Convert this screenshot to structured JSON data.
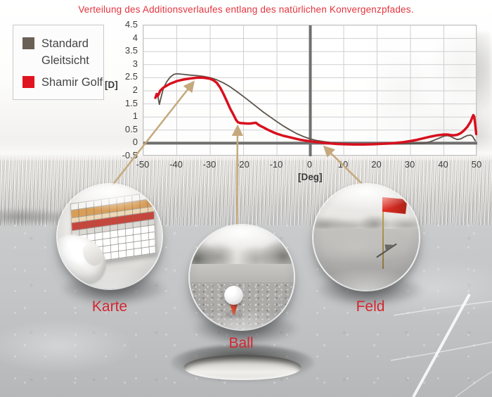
{
  "title": {
    "text": "Verteilung des Additionsverlaufes entlang des natürlichen Konvergenzpfades."
  },
  "legend": {
    "items": [
      {
        "label": "Standard Gleitsicht",
        "color": "#6b6055"
      },
      {
        "label": "Shamir Golf",
        "color": "#e0141f"
      }
    ]
  },
  "colors": {
    "accent_red": "#d22730",
    "title_red": "#e5333d",
    "arrow_tan": "#c5a97c",
    "axis_dark": "#6f6f6f",
    "grid": "#cfcfcf"
  },
  "chart_data": {
    "type": "line",
    "title": "",
    "xlabel": "[Deg]",
    "ylabel": "[D]",
    "xlim": [
      -50,
      50
    ],
    "ylim": [
      -0.5,
      4.5
    ],
    "x_ticks": [
      -50,
      -40,
      -30,
      -20,
      -10,
      0,
      10,
      20,
      30,
      40,
      50
    ],
    "y_ticks": [
      -0.5,
      0,
      0.5,
      1,
      1.5,
      2,
      2.5,
      3,
      3.5,
      4,
      4.5
    ],
    "grid": true,
    "legend_position": "outside-left",
    "series": [
      {
        "name": "Standard Gleitsicht",
        "color": "#5c544b",
        "width": 1.8,
        "points": [
          [
            -45.6,
            1.75
          ],
          [
            -45.2,
            1.48
          ],
          [
            -45,
            1.6
          ],
          [
            -44.5,
            1.85
          ],
          [
            -44,
            2.1
          ],
          [
            -43,
            2.35
          ],
          [
            -42,
            2.52
          ],
          [
            -41,
            2.62
          ],
          [
            -40,
            2.65
          ],
          [
            -38,
            2.63
          ],
          [
            -36,
            2.6
          ],
          [
            -34,
            2.58
          ],
          [
            -32,
            2.55
          ],
          [
            -30,
            2.5
          ],
          [
            -28,
            2.42
          ],
          [
            -26,
            2.3
          ],
          [
            -24,
            2.15
          ],
          [
            -22,
            1.97
          ],
          [
            -20,
            1.78
          ],
          [
            -18,
            1.58
          ],
          [
            -16,
            1.38
          ],
          [
            -14,
            1.18
          ],
          [
            -12,
            1.0
          ],
          [
            -10,
            0.82
          ],
          [
            -8,
            0.65
          ],
          [
            -6,
            0.5
          ],
          [
            -4,
            0.36
          ],
          [
            -2,
            0.25
          ],
          [
            0,
            0.16
          ],
          [
            2,
            0.1
          ],
          [
            4,
            0.06
          ],
          [
            6,
            0.03
          ],
          [
            8,
            0.01
          ],
          [
            10,
            -0.01
          ],
          [
            14,
            -0.03
          ],
          [
            18,
            -0.04
          ],
          [
            22,
            -0.04
          ],
          [
            26,
            -0.03
          ],
          [
            30,
            -0.02
          ],
          [
            34,
            0.0
          ],
          [
            36,
            0.06
          ],
          [
            38,
            0.16
          ],
          [
            40,
            0.27
          ],
          [
            41,
            0.29
          ],
          [
            42,
            0.26
          ],
          [
            43,
            0.19
          ],
          [
            44,
            0.14
          ],
          [
            45,
            0.16
          ],
          [
            46,
            0.23
          ],
          [
            47,
            0.29
          ],
          [
            48,
            0.31
          ],
          [
            48.6,
            0.27
          ],
          [
            49,
            0.17
          ],
          [
            49.4,
            0.09
          ]
        ]
      },
      {
        "name": "Shamir Golf",
        "color": "#d8101e",
        "width": 3.5,
        "points": [
          [
            -46.4,
            1.73
          ],
          [
            -46,
            1.88
          ],
          [
            -45.7,
            1.8
          ],
          [
            -45.3,
            1.9
          ],
          [
            -45,
            2.0
          ],
          [
            -44,
            2.12
          ],
          [
            -43,
            2.2
          ],
          [
            -42,
            2.27
          ],
          [
            -41,
            2.32
          ],
          [
            -40,
            2.37
          ],
          [
            -38,
            2.43
          ],
          [
            -36,
            2.47
          ],
          [
            -34,
            2.5
          ],
          [
            -32,
            2.5
          ],
          [
            -30,
            2.46
          ],
          [
            -29,
            2.4
          ],
          [
            -28,
            2.3
          ],
          [
            -27,
            2.12
          ],
          [
            -26,
            1.88
          ],
          [
            -25,
            1.6
          ],
          [
            -24,
            1.32
          ],
          [
            -23,
            1.08
          ],
          [
            -22.3,
            0.9
          ],
          [
            -21.7,
            0.8
          ],
          [
            -21,
            0.77
          ],
          [
            -20,
            0.76
          ],
          [
            -19,
            0.75
          ],
          [
            -18,
            0.75
          ],
          [
            -17,
            0.77
          ],
          [
            -16.3,
            0.78
          ],
          [
            -15.7,
            0.72
          ],
          [
            -15,
            0.66
          ],
          [
            -14,
            0.6
          ],
          [
            -13,
            0.53
          ],
          [
            -12,
            0.47
          ],
          [
            -11,
            0.41
          ],
          [
            -10,
            0.36
          ],
          [
            -9,
            0.32
          ],
          [
            -8,
            0.28
          ],
          [
            -7,
            0.25
          ],
          [
            -6,
            0.22
          ],
          [
            -5,
            0.19
          ],
          [
            -4,
            0.16
          ],
          [
            -3,
            0.13
          ],
          [
            -2,
            0.11
          ],
          [
            -1,
            0.09
          ],
          [
            0,
            0.07
          ],
          [
            2,
            0.04
          ],
          [
            4,
            0.01
          ],
          [
            6,
            -0.01
          ],
          [
            8,
            -0.03
          ],
          [
            10,
            -0.04
          ],
          [
            13,
            -0.05
          ],
          [
            16,
            -0.05
          ],
          [
            19,
            -0.04
          ],
          [
            22,
            -0.02
          ],
          [
            25,
            0.0
          ],
          [
            28,
            0.04
          ],
          [
            30,
            0.08
          ],
          [
            32,
            0.13
          ],
          [
            34,
            0.19
          ],
          [
            36,
            0.25
          ],
          [
            38,
            0.3
          ],
          [
            40,
            0.33
          ],
          [
            41,
            0.33
          ],
          [
            42,
            0.31
          ],
          [
            43,
            0.3
          ],
          [
            44,
            0.32
          ],
          [
            45,
            0.38
          ],
          [
            46,
            0.48
          ],
          [
            47,
            0.62
          ],
          [
            48,
            0.82
          ],
          [
            48.8,
            1.07
          ],
          [
            49.1,
            1.02
          ],
          [
            49.4,
            0.7
          ],
          [
            49.7,
            0.35
          ]
        ]
      }
    ]
  },
  "callouts": {
    "items": [
      {
        "label": "Karte"
      },
      {
        "label": "Ball"
      },
      {
        "label": "Feld"
      }
    ]
  }
}
